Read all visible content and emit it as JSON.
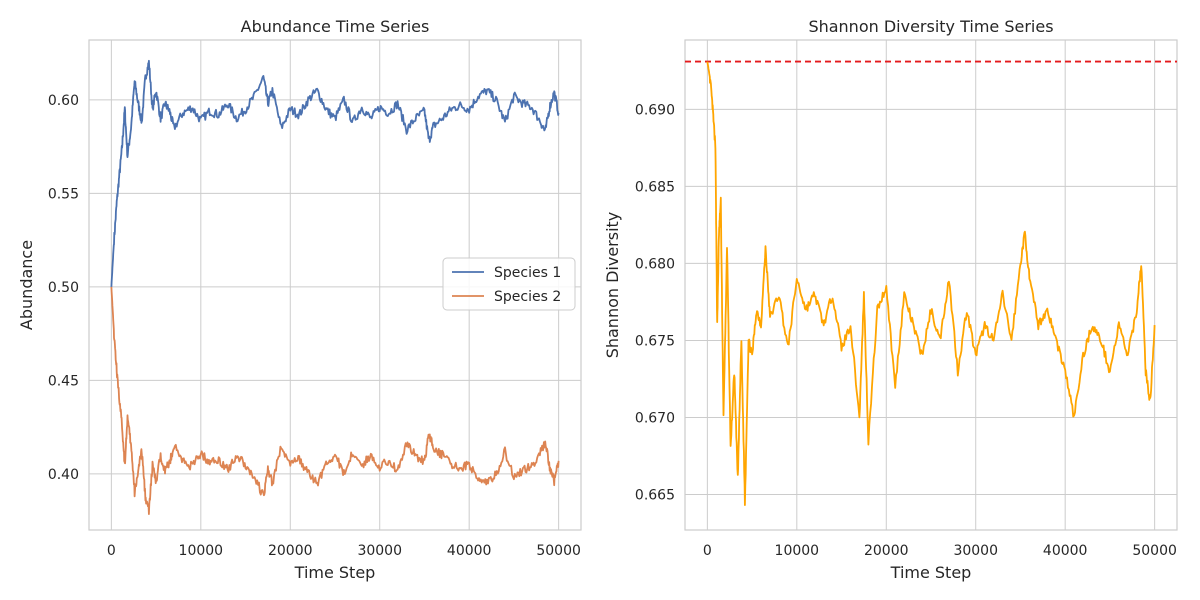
{
  "chart_data": [
    {
      "type": "line",
      "title": "Abundance Time Series",
      "xlabel": "Time Step",
      "ylabel": "Abundance",
      "xlim": [
        -2500,
        52500
      ],
      "ylim": [
        0.37,
        0.632
      ],
      "xticks": [
        0,
        10000,
        20000,
        30000,
        40000,
        50000
      ],
      "xtick_labels": [
        "0",
        "10000",
        "20000",
        "30000",
        "40000",
        "50000"
      ],
      "yticks": [
        0.4,
        0.45,
        0.5,
        0.55,
        0.6
      ],
      "ytick_labels": [
        "0.40",
        "0.45",
        "0.50",
        "0.55",
        "0.60"
      ],
      "grid": true,
      "legend": {
        "placement": "center-right"
      },
      "series": [
        {
          "name": "Species 1",
          "color": "#4c72b0",
          "x": [
            0,
            300,
            600,
            900,
            1200,
            1500,
            1800,
            2200,
            2600,
            3000,
            3400,
            3800,
            4200,
            4600,
            5000,
            5500,
            6000,
            6500,
            7000,
            8000,
            9000,
            10000,
            11000,
            12000,
            13000,
            14000,
            15000,
            16000,
            17000,
            17500,
            18000,
            19000,
            20000,
            21000,
            22000,
            23000,
            24000,
            25000,
            26000,
            27000,
            28000,
            29000,
            30000,
            31000,
            32000,
            33000,
            34000,
            35000,
            35500,
            36000,
            37000,
            38000,
            39000,
            40000,
            41000,
            42000,
            43000,
            44000,
            45000,
            46000,
            47000,
            48000,
            48500,
            49000,
            49500,
            50000
          ],
          "y": [
            0.5,
            0.525,
            0.545,
            0.56,
            0.575,
            0.595,
            0.57,
            0.585,
            0.61,
            0.598,
            0.588,
            0.612,
            0.62,
            0.595,
            0.605,
            0.59,
            0.598,
            0.594,
            0.585,
            0.593,
            0.596,
            0.589,
            0.594,
            0.592,
            0.598,
            0.59,
            0.595,
            0.602,
            0.612,
            0.598,
            0.605,
            0.585,
            0.595,
            0.592,
            0.6,
            0.605,
            0.595,
            0.59,
            0.6,
            0.588,
            0.596,
            0.59,
            0.596,
            0.593,
            0.598,
            0.584,
            0.59,
            0.594,
            0.578,
            0.586,
            0.59,
            0.595,
            0.597,
            0.595,
            0.602,
            0.605,
            0.6,
            0.588,
            0.602,
            0.598,
            0.596,
            0.588,
            0.583,
            0.596,
            0.604,
            0.593
          ]
        },
        {
          "name": "Species 2",
          "color": "#dd8452",
          "x": [
            0,
            300,
            600,
            900,
            1200,
            1500,
            1800,
            2200,
            2600,
            3000,
            3400,
            3800,
            4200,
            4600,
            5000,
            5500,
            6000,
            6500,
            7000,
            8000,
            9000,
            10000,
            11000,
            12000,
            13000,
            14000,
            15000,
            16000,
            17000,
            17500,
            18000,
            19000,
            20000,
            21000,
            22000,
            23000,
            24000,
            25000,
            26000,
            27000,
            28000,
            29000,
            30000,
            31000,
            32000,
            33000,
            34000,
            35000,
            35500,
            36000,
            37000,
            38000,
            39000,
            40000,
            41000,
            42000,
            43000,
            44000,
            45000,
            46000,
            47000,
            48000,
            48500,
            49000,
            49500,
            50000
          ],
          "y": [
            0.5,
            0.475,
            0.455,
            0.44,
            0.425,
            0.405,
            0.43,
            0.415,
            0.39,
            0.402,
            0.412,
            0.388,
            0.38,
            0.405,
            0.395,
            0.41,
            0.402,
            0.406,
            0.415,
            0.407,
            0.404,
            0.411,
            0.406,
            0.408,
            0.402,
            0.41,
            0.405,
            0.398,
            0.388,
            0.402,
            0.395,
            0.415,
            0.405,
            0.408,
            0.4,
            0.395,
            0.405,
            0.41,
            0.4,
            0.412,
            0.404,
            0.41,
            0.404,
            0.407,
            0.402,
            0.416,
            0.41,
            0.406,
            0.422,
            0.414,
            0.41,
            0.405,
            0.403,
            0.405,
            0.398,
            0.395,
            0.4,
            0.412,
            0.398,
            0.402,
            0.404,
            0.412,
            0.417,
            0.404,
            0.396,
            0.407
          ]
        }
      ]
    },
    {
      "type": "line",
      "title": "Shannon Diversity Time Series",
      "xlabel": "Time Step",
      "ylabel": "Shannon Diversity",
      "xlim": [
        -2500,
        52500
      ],
      "ylim": [
        0.6627,
        0.6945
      ],
      "xticks": [
        0,
        10000,
        20000,
        30000,
        40000,
        50000
      ],
      "xtick_labels": [
        "0",
        "10000",
        "20000",
        "30000",
        "40000",
        "50000"
      ],
      "yticks": [
        0.665,
        0.67,
        0.675,
        0.68,
        0.685,
        0.69
      ],
      "ytick_labels": [
        "0.665",
        "0.670",
        "0.675",
        "0.680",
        "0.685",
        "0.690"
      ],
      "grid": true,
      "reference_line": {
        "y": 0.6931,
        "color": "#e41a1c",
        "style": "dashed"
      },
      "series": [
        {
          "color": "#ffa500",
          "x": [
            0,
            300,
            600,
            900,
            1100,
            1300,
            1500,
            1800,
            2200,
            2600,
            3000,
            3400,
            3800,
            4200,
            4600,
            5000,
            5500,
            6000,
            6500,
            7000,
            8000,
            9000,
            10000,
            11000,
            12000,
            13000,
            14000,
            15000,
            16000,
            17000,
            17500,
            18000,
            19000,
            20000,
            21000,
            22000,
            23000,
            24000,
            25000,
            26000,
            27000,
            28000,
            29000,
            30000,
            31000,
            32000,
            33000,
            34000,
            35000,
            35500,
            36000,
            37000,
            38000,
            39000,
            40000,
            41000,
            42000,
            43000,
            44000,
            45000,
            46000,
            47000,
            48000,
            48500,
            49000,
            49500,
            50000
          ],
          "y": [
            0.6931,
            0.692,
            0.69,
            0.6875,
            0.676,
            0.682,
            0.684,
            0.67,
            0.681,
            0.668,
            0.673,
            0.666,
            0.675,
            0.6645,
            0.675,
            0.674,
            0.677,
            0.676,
            0.681,
            0.6765,
            0.678,
            0.6745,
            0.679,
            0.677,
            0.678,
            0.676,
            0.678,
            0.6745,
            0.676,
            0.67,
            0.678,
            0.6685,
            0.677,
            0.6785,
            0.672,
            0.678,
            0.676,
            0.674,
            0.677,
            0.675,
            0.679,
            0.673,
            0.677,
            0.674,
            0.676,
            0.675,
            0.678,
            0.675,
            0.68,
            0.682,
            0.679,
            0.676,
            0.677,
            0.675,
            0.673,
            0.67,
            0.674,
            0.676,
            0.675,
            0.673,
            0.676,
            0.674,
            0.677,
            0.68,
            0.673,
            0.671,
            0.676
          ]
        }
      ]
    }
  ]
}
